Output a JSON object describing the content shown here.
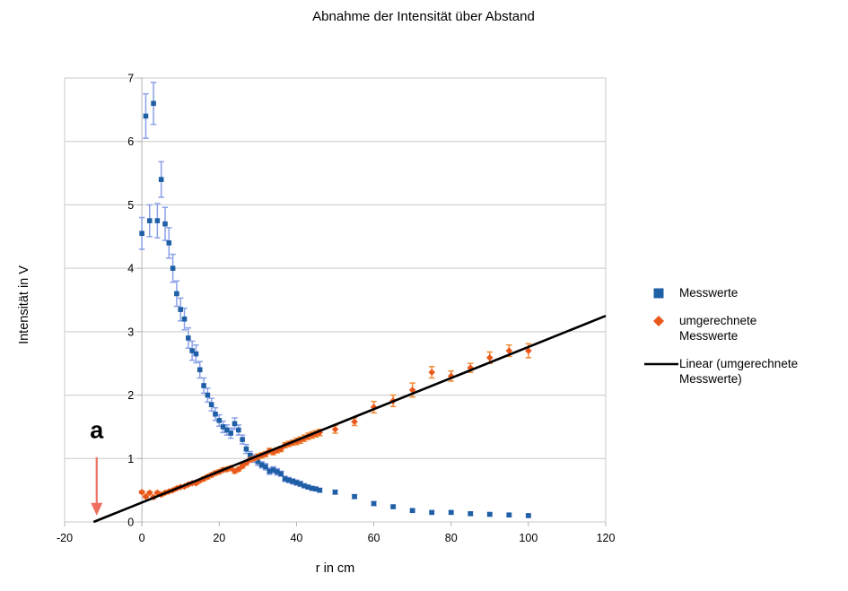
{
  "chart_data": {
    "type": "scatter",
    "title": "Abnahme der Intensität über Abstand",
    "xlabel": "r in cm",
    "ylabel": "Intensität in V",
    "xlim": [
      -20,
      120
    ],
    "ylim": [
      0,
      7
    ],
    "x_ticks": [
      -20,
      0,
      20,
      40,
      60,
      80,
      100,
      120
    ],
    "y_ticks": [
      0,
      1,
      2,
      3,
      4,
      5,
      6,
      7
    ],
    "grid": "horizontal",
    "grid_color": "#c9c9c9",
    "axis_color": "#b3b3b3",
    "legend_position": "right",
    "series": [
      {
        "name": "Messwerte",
        "kind": "scatter",
        "marker": "square",
        "color": "#1f5fa6",
        "error_color": "#8aa0e8",
        "points_xye": [
          [
            0,
            4.55,
            0.25
          ],
          [
            1,
            6.4,
            0.35
          ],
          [
            2,
            4.75,
            0.25
          ],
          [
            3,
            6.6,
            0.33
          ],
          [
            4,
            4.75,
            0.27
          ],
          [
            5,
            5.4,
            0.28
          ],
          [
            6,
            4.7,
            0.26
          ],
          [
            7,
            4.4,
            0.24
          ],
          [
            8,
            4.0,
            0.22
          ],
          [
            9,
            3.6,
            0.2
          ],
          [
            10,
            3.35,
            0.18
          ],
          [
            11,
            3.2,
            0.17
          ],
          [
            12,
            2.9,
            0.16
          ],
          [
            13,
            2.7,
            0.15
          ],
          [
            14,
            2.65,
            0.14
          ],
          [
            15,
            2.4,
            0.13
          ],
          [
            16,
            2.15,
            0.12
          ],
          [
            17,
            2.0,
            0.11
          ],
          [
            18,
            1.85,
            0.1
          ],
          [
            19,
            1.7,
            0.1
          ],
          [
            20,
            1.6,
            0.09
          ],
          [
            21,
            1.5,
            0.09
          ],
          [
            22,
            1.45,
            0.08
          ],
          [
            23,
            1.4,
            0.08
          ],
          [
            24,
            1.55,
            0.09
          ],
          [
            25,
            1.45,
            0.08
          ],
          [
            26,
            1.3,
            0.07
          ],
          [
            27,
            1.15,
            0.07
          ],
          [
            28,
            1.05,
            0.06
          ],
          [
            29,
            1.0,
            0.06
          ],
          [
            30,
            0.95,
            0.06
          ],
          [
            31,
            0.9,
            0.05
          ],
          [
            32,
            0.87,
            0.05
          ],
          [
            33,
            0.8,
            0.05
          ],
          [
            34,
            0.82,
            0.05
          ],
          [
            35,
            0.79,
            0.05
          ],
          [
            36,
            0.76,
            0.04
          ],
          [
            37,
            0.68,
            0.04
          ],
          [
            38,
            0.66,
            0.04
          ],
          [
            39,
            0.64,
            0.04
          ],
          [
            40,
            0.62,
            0.04
          ],
          [
            41,
            0.6,
            0.04
          ],
          [
            42,
            0.57,
            0.03
          ],
          [
            43,
            0.55,
            0.03
          ],
          [
            44,
            0.53,
            0.03
          ],
          [
            45,
            0.52,
            0.03
          ],
          [
            46,
            0.5,
            0.03
          ],
          [
            50,
            0.47,
            0.03
          ],
          [
            55,
            0.4,
            0.03
          ],
          [
            60,
            0.29,
            0.03
          ],
          [
            65,
            0.24,
            0.02
          ],
          [
            70,
            0.18,
            0.02
          ],
          [
            75,
            0.15,
            0.02
          ],
          [
            80,
            0.15,
            0.02
          ],
          [
            85,
            0.13,
            0.02
          ],
          [
            90,
            0.12,
            0.02
          ],
          [
            95,
            0.11,
            0.02
          ],
          [
            100,
            0.1,
            0.02
          ]
        ]
      },
      {
        "name": "umgerechnete Messwerte",
        "kind": "scatter",
        "marker": "diamond",
        "color": "#e9571b",
        "error_color": "#f08a33",
        "points_xye": [
          [
            0,
            0.47,
            0.02
          ],
          [
            1,
            0.4,
            0.02
          ],
          [
            2,
            0.46,
            0.02
          ],
          [
            3,
            0.39,
            0.02
          ],
          [
            4,
            0.46,
            0.02
          ],
          [
            5,
            0.43,
            0.02
          ],
          [
            6,
            0.46,
            0.02
          ],
          [
            7,
            0.48,
            0.02
          ],
          [
            8,
            0.5,
            0.02
          ],
          [
            9,
            0.53,
            0.02
          ],
          [
            10,
            0.55,
            0.02
          ],
          [
            11,
            0.56,
            0.02
          ],
          [
            12,
            0.59,
            0.02
          ],
          [
            13,
            0.61,
            0.02
          ],
          [
            14,
            0.61,
            0.02
          ],
          [
            15,
            0.65,
            0.02
          ],
          [
            16,
            0.68,
            0.03
          ],
          [
            17,
            0.71,
            0.03
          ],
          [
            18,
            0.74,
            0.03
          ],
          [
            19,
            0.77,
            0.03
          ],
          [
            20,
            0.79,
            0.03
          ],
          [
            21,
            0.82,
            0.03
          ],
          [
            22,
            0.83,
            0.03
          ],
          [
            23,
            0.85,
            0.03
          ],
          [
            24,
            0.8,
            0.03
          ],
          [
            25,
            0.83,
            0.03
          ],
          [
            26,
            0.88,
            0.03
          ],
          [
            27,
            0.93,
            0.03
          ],
          [
            28,
            0.98,
            0.03
          ],
          [
            29,
            1.0,
            0.03
          ],
          [
            30,
            1.03,
            0.04
          ],
          [
            31,
            1.05,
            0.04
          ],
          [
            32,
            1.07,
            0.04
          ],
          [
            33,
            1.12,
            0.04
          ],
          [
            34,
            1.1,
            0.04
          ],
          [
            35,
            1.13,
            0.04
          ],
          [
            36,
            1.15,
            0.04
          ],
          [
            37,
            1.21,
            0.04
          ],
          [
            38,
            1.23,
            0.04
          ],
          [
            39,
            1.25,
            0.04
          ],
          [
            40,
            1.27,
            0.05
          ],
          [
            41,
            1.29,
            0.05
          ],
          [
            42,
            1.32,
            0.05
          ],
          [
            43,
            1.35,
            0.05
          ],
          [
            44,
            1.37,
            0.05
          ],
          [
            45,
            1.39,
            0.05
          ],
          [
            46,
            1.41,
            0.05
          ],
          [
            50,
            1.46,
            0.06
          ],
          [
            55,
            1.58,
            0.06
          ],
          [
            60,
            1.81,
            0.09
          ],
          [
            65,
            1.91,
            0.09
          ],
          [
            70,
            2.08,
            0.11
          ],
          [
            75,
            2.36,
            0.09
          ],
          [
            80,
            2.3,
            0.08
          ],
          [
            85,
            2.43,
            0.07
          ],
          [
            90,
            2.59,
            0.09
          ],
          [
            95,
            2.7,
            0.09
          ],
          [
            100,
            2.7,
            0.11
          ]
        ]
      },
      {
        "name": "Linear (umgerechnete Messwerte)",
        "kind": "line",
        "color": "#000000",
        "points_xye": [
          [
            -12.5,
            0
          ],
          [
            120,
            3.25
          ]
        ]
      }
    ],
    "annotation": {
      "text": "a",
      "text_color": "#c2251c",
      "arrow_color": "#ee6f61",
      "x": -11.7,
      "text_y": 1.32,
      "arrow_top_y": 1.02,
      "arrow_head_y": 0.3,
      "arrow_tip_y": 0.1
    }
  }
}
